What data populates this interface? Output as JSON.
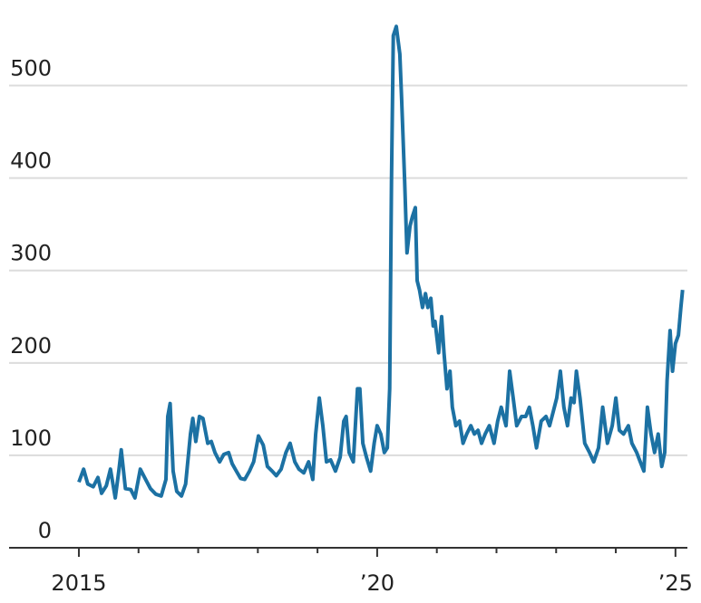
{
  "chart_data": {
    "type": "line",
    "x": [
      2015.0,
      2015.08,
      2015.15,
      2015.24,
      2015.32,
      2015.38,
      2015.46,
      2015.53,
      2015.61,
      2015.67,
      2015.71,
      2015.78,
      2015.87,
      2015.94,
      2016.03,
      2016.11,
      2016.2,
      2016.29,
      2016.38,
      2016.46,
      2016.49,
      2016.53,
      2016.58,
      2016.64,
      2016.72,
      2016.79,
      2016.87,
      2016.91,
      2016.96,
      2017.02,
      2017.08,
      2017.16,
      2017.22,
      2017.28,
      2017.36,
      2017.43,
      2017.51,
      2017.57,
      2017.64,
      2017.71,
      2017.78,
      2017.86,
      2017.93,
      2018.01,
      2018.09,
      2018.16,
      2018.24,
      2018.31,
      2018.39,
      2018.47,
      2018.54,
      2018.62,
      2018.69,
      2018.77,
      2018.85,
      2018.92,
      2018.97,
      2019.03,
      2019.09,
      2019.15,
      2019.22,
      2019.3,
      2019.38,
      2019.44,
      2019.48,
      2019.53,
      2019.6,
      2019.67,
      2019.71,
      2019.76,
      2019.82,
      2019.89,
      2019.95,
      2020.0,
      2020.06,
      2020.12,
      2020.17,
      2020.21,
      2020.24,
      2020.27,
      2020.32,
      2020.38,
      2020.41,
      2020.46,
      2020.5,
      2020.55,
      2020.59,
      2020.64,
      2020.67,
      2020.71,
      2020.76,
      2020.81,
      2020.85,
      2020.9,
      2020.94,
      2020.97,
      2021.03,
      2021.08,
      2021.12,
      2021.17,
      2021.22,
      2021.26,
      2021.32,
      2021.38,
      2021.44,
      2021.5,
      2021.57,
      2021.63,
      2021.69,
      2021.75,
      2021.81,
      2021.88,
      2021.96,
      2022.02,
      2022.08,
      2022.16,
      2022.22,
      2022.28,
      2022.34,
      2022.42,
      2022.49,
      2022.55,
      2022.61,
      2022.67,
      2022.75,
      2022.83,
      2022.89,
      2022.95,
      2023.01,
      2023.07,
      2023.13,
      2023.19,
      2023.25,
      2023.3,
      2023.34,
      2023.4,
      2023.48,
      2023.56,
      2023.63,
      2023.71,
      2023.78,
      2023.86,
      2023.94,
      2024.0,
      2024.06,
      2024.13,
      2024.21,
      2024.27,
      2024.35,
      2024.41,
      2024.47,
      2024.53,
      2024.59,
      2024.65,
      2024.71,
      2024.77,
      2024.82,
      2024.86,
      2024.91,
      2024.95,
      2025.0,
      2025.05,
      2025.09,
      2025.12
    ],
    "values": [
      71,
      85,
      69,
      66,
      76,
      59,
      67,
      85,
      54,
      83,
      106,
      64,
      63,
      54,
      85,
      75,
      64,
      58,
      56,
      74,
      142,
      156,
      83,
      61,
      56,
      69,
      123,
      140,
      115,
      142,
      140,
      113,
      115,
      103,
      93,
      101,
      103,
      91,
      83,
      75,
      74,
      83,
      93,
      121,
      111,
      88,
      83,
      78,
      85,
      103,
      113,
      93,
      85,
      81,
      93,
      74,
      123,
      162,
      132,
      93,
      95,
      83,
      98,
      137,
      142,
      103,
      93,
      172,
      172,
      113,
      98,
      83,
      113,
      132,
      123,
      103,
      108,
      172,
      397,
      554,
      564,
      534,
      485,
      397,
      319,
      348,
      358,
      368,
      289,
      279,
      260,
      275,
      260,
      270,
      240,
      245,
      211,
      250,
      211,
      172,
      191,
      152,
      132,
      137,
      113,
      123,
      132,
      123,
      127,
      113,
      123,
      132,
      113,
      137,
      152,
      132,
      191,
      162,
      132,
      142,
      142,
      152,
      132,
      108,
      137,
      142,
      132,
      147,
      162,
      191,
      152,
      132,
      162,
      157,
      191,
      162,
      113,
      103,
      93,
      108,
      152,
      113,
      132,
      162,
      127,
      123,
      132,
      113,
      103,
      93,
      83,
      152,
      123,
      103,
      123,
      88,
      103,
      181,
      235,
      191,
      221,
      230,
      260,
      279
    ],
    "color": "#1c71a3",
    "xlim": [
      2013.83,
      2025.2
    ],
    "xticks": [
      2015,
      {
        "value": 2020,
        "label": "’20"
      },
      {
        "value": 2025,
        "label": "’25"
      }
    ],
    "x_minor_ticks": [
      2016,
      2017,
      2018,
      2019,
      2021,
      2022,
      2023,
      2024
    ],
    "ylim": [
      0,
      574
    ],
    "yticks": [
      0,
      100,
      200,
      300,
      400,
      500
    ],
    "grid": true
  }
}
